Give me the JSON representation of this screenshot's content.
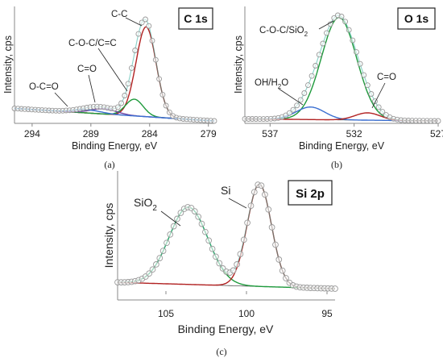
{
  "colors": {
    "carbon_fit": "#b22222",
    "green": "#1e9a3c",
    "blue": "#3a6fd1",
    "purple": "#6a3fa0",
    "teal": "#3bb3a3",
    "marker_edge": "#999999"
  },
  "chart_data": [
    {
      "type": "line",
      "panel_label": "(a)",
      "badge": "C 1s",
      "xlabel": "Binding Energy, eV",
      "ylabel": "Intensity, cps",
      "xlim": [
        295.5,
        278.5
      ],
      "ylim": [
        0,
        1.05
      ],
      "x_ticks": [
        "294",
        "289",
        "284",
        "279"
      ],
      "series_baseline": {
        "start": 0.12,
        "end": 0.0
      },
      "components": [
        {
          "label": "C-C",
          "center": 284.3,
          "height": 0.86,
          "width": 0.85,
          "color_key": "carbon_fit"
        },
        {
          "label": "C-O-C/C=C",
          "center": 285.3,
          "height": 0.16,
          "width": 0.75,
          "color_key": "green"
        },
        {
          "label": "C=O",
          "center": 287.9,
          "height": 0.05,
          "width": 1.1,
          "color_key": "purple"
        },
        {
          "label": "O-C=O",
          "center": 289.3,
          "height": 0.03,
          "width": 1.2,
          "color_key": "blue"
        }
      ],
      "annotations": [
        "C-C",
        "C-O-C/C=C",
        "C=O",
        "O-C=O"
      ]
    },
    {
      "type": "line",
      "panel_label": "(b)",
      "badge": "O 1s",
      "xlabel": "Binding Energy, eV",
      "ylabel": "Intensity, cps",
      "xlim": [
        538.5,
        527.0
      ],
      "ylim": [
        0,
        1.05
      ],
      "x_ticks": [
        "537",
        "532",
        "527"
      ],
      "series_baseline": {
        "start": 0.02,
        "end": 0.0
      },
      "components": [
        {
          "label": "C-O-C/SiO2",
          "center": 532.9,
          "height": 0.98,
          "width": 1.05,
          "color_key": "green"
        },
        {
          "label": "OH/H2O",
          "center": 534.6,
          "height": 0.12,
          "width": 0.85,
          "color_key": "blue"
        },
        {
          "label": "C=O",
          "center": 531.2,
          "height": 0.07,
          "width": 0.75,
          "color_key": "carbon_fit"
        }
      ],
      "annotations": [
        "C-O-C/SiO",
        "2",
        "OH/H",
        "2",
        "O",
        "C=O"
      ]
    },
    {
      "type": "line",
      "panel_label": "(c)",
      "badge": "Si 2p",
      "xlabel": "Binding Energy, eV",
      "ylabel": "Intensity, cps",
      "xlim": [
        108.0,
        94.5
      ],
      "ylim": [
        0,
        1.05
      ],
      "x_ticks": [
        "105",
        "100",
        "95"
      ],
      "series_baseline": {
        "start": 0.06,
        "end": 0.0
      },
      "components": [
        {
          "label": "SiO2",
          "center": 103.6,
          "height": 0.74,
          "width": 1.2,
          "color_key": "green"
        },
        {
          "label": "Si",
          "center": 99.2,
          "height": 0.98,
          "width": 0.75,
          "color_key": "carbon_fit"
        }
      ],
      "annotations": [
        "SiO",
        "2",
        "Si"
      ]
    }
  ]
}
